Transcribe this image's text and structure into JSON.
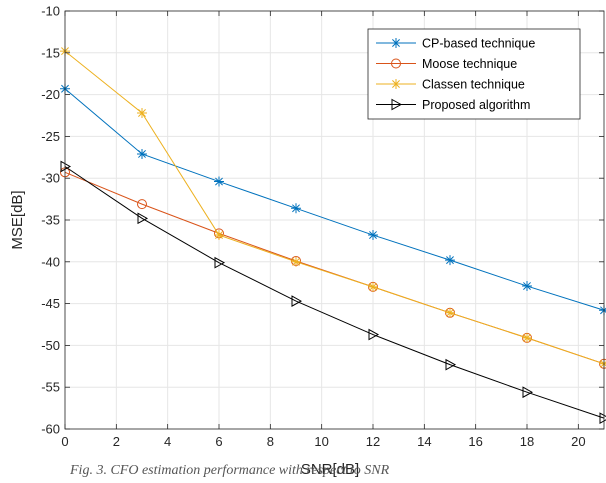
{
  "chart_data": {
    "type": "line",
    "xlabel": "SNR[dB]",
    "ylabel": "MSE[dB]",
    "xlim": [
      0,
      21
    ],
    "ylim": [
      -60,
      -10
    ],
    "xticks": [
      0,
      2,
      4,
      6,
      8,
      10,
      12,
      14,
      16,
      18,
      20
    ],
    "yticks": [
      -60,
      -55,
      -50,
      -45,
      -40,
      -35,
      -30,
      -25,
      -20,
      -15,
      -10
    ],
    "grid": true,
    "legend_position": "top-right",
    "series": [
      {
        "name": "CP-based technique",
        "color": "#0072BD",
        "marker": "asterisk",
        "x": [
          0,
          3,
          6,
          9,
          12,
          15,
          18,
          21
        ],
        "y": [
          -19.3,
          -27.1,
          -30.4,
          -33.6,
          -36.8,
          -39.8,
          -42.9,
          -45.8
        ]
      },
      {
        "name": "Moose technique",
        "color": "#D95319",
        "marker": "circle",
        "x": [
          0,
          3,
          6,
          9,
          12,
          15,
          18,
          21
        ],
        "y": [
          -29.3,
          -33.1,
          -36.6,
          -39.9,
          -43.0,
          -46.1,
          -49.1,
          -52.2
        ]
      },
      {
        "name": "Classen technique",
        "color": "#EDB120",
        "marker": "asterisk",
        "x": [
          0,
          3,
          6,
          9,
          12,
          15,
          18,
          21
        ],
        "y": [
          -14.8,
          -22.2,
          -36.8,
          -40.0,
          -43.0,
          -46.1,
          -49.1,
          -52.2
        ]
      },
      {
        "name": "Proposed algorithm",
        "color": "#000000",
        "marker": "triangle-right",
        "x": [
          0,
          3,
          6,
          9,
          12,
          15,
          18,
          21
        ],
        "y": [
          -28.6,
          -34.8,
          -40.1,
          -44.7,
          -48.7,
          -52.3,
          -55.6,
          -58.7
        ]
      }
    ]
  },
  "caption": "Fig. 3. CFO estimation performance with respect to SNR"
}
